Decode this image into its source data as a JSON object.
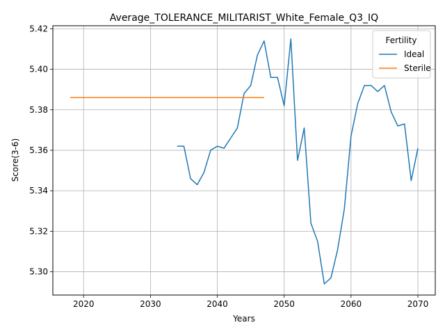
{
  "chart_data": {
    "type": "line",
    "title": "Average_TOLERANCE_MILITARIST_White_Female_Q3_IQ",
    "xlabel": "Years",
    "ylabel": "Score(3-6)",
    "xlim": [
      2015.4,
      2072.6
    ],
    "ylim": [
      5.2885,
      5.4215
    ],
    "xticks": [
      2020,
      2030,
      2040,
      2050,
      2060,
      2070
    ],
    "yticks": [
      5.3,
      5.32,
      5.34,
      5.36,
      5.38,
      5.4,
      5.42
    ],
    "xtick_labels": [
      "2020",
      "2030",
      "2040",
      "2050",
      "2060",
      "2070"
    ],
    "ytick_labels": [
      "5.30",
      "5.32",
      "5.34",
      "5.36",
      "5.38",
      "5.40",
      "5.42"
    ],
    "grid": true,
    "legend": {
      "title": "Fertility",
      "placement": "top-right",
      "entries": [
        "Ideal",
        "Sterile"
      ]
    },
    "series": [
      {
        "name": "Ideal",
        "color": "#1f77b4",
        "x": [
          2034,
          2035,
          2036,
          2037,
          2038,
          2039,
          2040,
          2041,
          2042,
          2043,
          2044,
          2045,
          2046,
          2047,
          2048,
          2049,
          2050,
          2051,
          2052,
          2053,
          2054,
          2055,
          2056,
          2057,
          2058,
          2059,
          2060,
          2061,
          2062,
          2063,
          2064,
          2065,
          2066,
          2067,
          2068,
          2069,
          2070
        ],
        "y": [
          5.362,
          5.362,
          5.346,
          5.343,
          5.349,
          5.36,
          5.362,
          5.361,
          5.366,
          5.371,
          5.388,
          5.392,
          5.407,
          5.414,
          5.396,
          5.396,
          5.382,
          5.415,
          5.355,
          5.371,
          5.324,
          5.315,
          5.294,
          5.297,
          5.311,
          5.331,
          5.367,
          5.383,
          5.392,
          5.392,
          5.389,
          5.392,
          5.379,
          5.372,
          5.373,
          5.345,
          5.361
        ]
      },
      {
        "name": "Sterile",
        "color": "#ff7f0e",
        "x": [
          2018,
          2047
        ],
        "y": [
          5.386,
          5.386
        ]
      }
    ]
  }
}
